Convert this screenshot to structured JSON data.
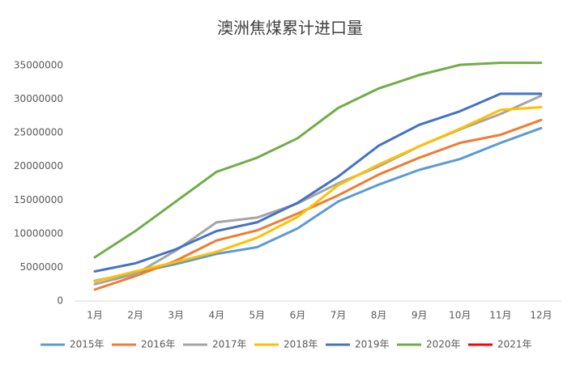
{
  "chart_data": {
    "type": "line",
    "title": "澳洲焦煤累计进口量",
    "categories": [
      "1月",
      "2月",
      "3月",
      "4月",
      "5月",
      "6月",
      "7月",
      "8月",
      "9月",
      "10月",
      "11月",
      "12月"
    ],
    "series": [
      {
        "name": "2015年",
        "color": "#5b9bd5",
        "values": [
          3000000,
          4200000,
          5500000,
          7000000,
          8000000,
          10800000,
          14800000,
          17300000,
          19500000,
          21100000,
          23500000,
          25700000
        ]
      },
      {
        "name": "2016年",
        "color": "#ed7d31",
        "values": [
          1700000,
          3700000,
          6000000,
          9000000,
          10500000,
          13000000,
          15700000,
          18800000,
          21300000,
          23500000,
          24700000,
          26900000
        ]
      },
      {
        "name": "2017年",
        "color": "#a5a5a5",
        "values": [
          2500000,
          4000000,
          7500000,
          11700000,
          12400000,
          14500000,
          17500000,
          20000000,
          23000000,
          25500000,
          27800000,
          30500000
        ]
      },
      {
        "name": "2018年",
        "color": "#ffc000",
        "values": [
          2900000,
          4400000,
          5800000,
          7300000,
          9400000,
          12500000,
          17200000,
          20300000,
          23000000,
          25600000,
          28400000,
          28800000
        ]
      },
      {
        "name": "2019年",
        "color": "#4472c4",
        "values": [
          4400000,
          5600000,
          7700000,
          10400000,
          11700000,
          14600000,
          18500000,
          23100000,
          26200000,
          28200000,
          30800000,
          30800000
        ]
      },
      {
        "name": "2020年",
        "color": "#70ad47",
        "values": [
          6500000,
          10400000,
          14800000,
          19200000,
          21300000,
          24200000,
          28700000,
          31600000,
          33600000,
          35100000,
          35400000,
          35400000
        ]
      },
      {
        "name": "2021年",
        "color": "#ff0000",
        "values": [
          null,
          null,
          null,
          null,
          null,
          null,
          null,
          null,
          null,
          null,
          null,
          null
        ]
      }
    ],
    "ylim": [
      0,
      35000000
    ],
    "yticks": [
      0,
      5000000,
      10000000,
      15000000,
      20000000,
      25000000,
      30000000,
      35000000
    ],
    "grid": false,
    "legend": "bottom"
  }
}
